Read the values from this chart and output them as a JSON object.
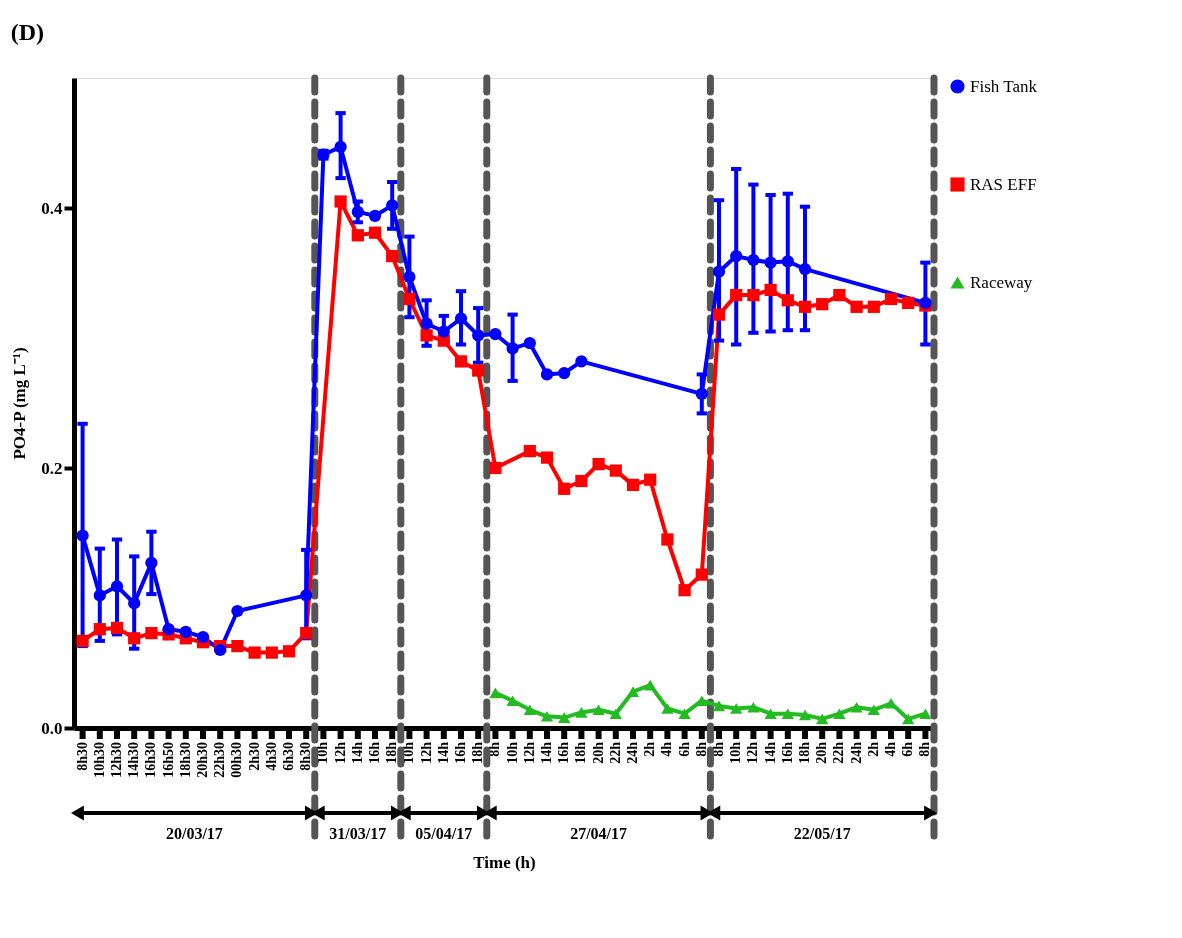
{
  "chart_data": {
    "type": "line",
    "title": "(D)",
    "xlabel": "Time (h)",
    "ylabel": "PO4-P (mg L⁻¹)",
    "categories": [
      "8h30",
      "10h30",
      "12h30",
      "14h30",
      "16h30",
      "16h50",
      "18h30",
      "20h30",
      "22h30",
      "00h30",
      "2h30",
      "4h30",
      "6h30",
      "8h30",
      "10h",
      "12h",
      "14h",
      "16h",
      "18h",
      "10h",
      "12h",
      "14h",
      "16h",
      "18h",
      "8h",
      "10h",
      "12h",
      "14h",
      "16h",
      "18h",
      "20h",
      "22h",
      "24h",
      "2h",
      "4h",
      "6h",
      "8h",
      "8h",
      "10h",
      "12h",
      "14h",
      "16h",
      "18h",
      "20h",
      "22h",
      "24h",
      "2h",
      "4h",
      "6h",
      "8h"
    ],
    "series": [
      {
        "name": "Fish Tank",
        "color": "#0000ff",
        "marker": "circle",
        "values": [
          0.148,
          0.102,
          0.109,
          0.096,
          0.127,
          0.076,
          0.074,
          0.07,
          0.06,
          0.09,
          null,
          null,
          null,
          0.102,
          0.441,
          0.447,
          0.397,
          0.394,
          0.402,
          0.347,
          0.311,
          0.305,
          0.315,
          0.302,
          0.303,
          0.292,
          0.296,
          0.272,
          0.273,
          0.282,
          null,
          null,
          null,
          null,
          null,
          null,
          0.257,
          0.351,
          0.363,
          0.36,
          0.358,
          0.359,
          0.353,
          null,
          null,
          null,
          null,
          null,
          null,
          0.327
        ],
        "errors": [
          [
            0.063,
            0.234
          ],
          [
            0.067,
            0.138
          ],
          [
            0.072,
            0.145
          ],
          [
            0.061,
            0.132
          ],
          [
            0.103,
            0.151
          ],
          null,
          null,
          null,
          null,
          null,
          null,
          null,
          null,
          [
            0.069,
            0.137
          ],
          [
            0.438,
            0.444
          ],
          [
            0.423,
            0.473
          ],
          [
            0.389,
            0.405
          ],
          null,
          [
            0.384,
            0.42
          ],
          [
            0.316,
            0.378
          ],
          [
            0.294,
            0.329
          ],
          [
            0.305,
            0.317
          ],
          [
            0.295,
            0.336
          ],
          [
            0.281,
            0.323
          ],
          null,
          [
            0.267,
            0.318
          ],
          null,
          null,
          null,
          null,
          null,
          null,
          null,
          null,
          null,
          null,
          [
            0.242,
            0.272
          ],
          [
            0.298,
            0.406
          ],
          [
            0.295,
            0.43
          ],
          [
            0.304,
            0.418
          ],
          [
            0.305,
            0.41
          ],
          [
            0.306,
            0.411
          ],
          [
            0.306,
            0.401
          ],
          null,
          null,
          null,
          null,
          null,
          null,
          [
            0.295,
            0.358
          ]
        ]
      },
      {
        "name": "RAS EFF",
        "color": "#ff0000",
        "marker": "square",
        "values": [
          0.067,
          0.076,
          0.077,
          0.069,
          0.073,
          0.072,
          0.069,
          0.066,
          0.063,
          0.063,
          0.058,
          0.058,
          0.059,
          0.073,
          null,
          0.405,
          0.379,
          0.381,
          0.363,
          0.33,
          0.302,
          0.298,
          0.282,
          0.275,
          0.2,
          null,
          0.213,
          0.208,
          0.184,
          0.19,
          0.203,
          0.198,
          0.187,
          0.191,
          0.145,
          0.106,
          0.118,
          0.318,
          0.333,
          0.333,
          0.337,
          0.329,
          0.324,
          0.326,
          0.333,
          0.324,
          0.324,
          0.33,
          0.327,
          0.325
        ]
      },
      {
        "name": "Raceway",
        "color": "#22bb22",
        "marker": "triangle",
        "values": [
          null,
          null,
          null,
          null,
          null,
          null,
          null,
          null,
          null,
          null,
          null,
          null,
          null,
          null,
          null,
          null,
          null,
          null,
          null,
          null,
          null,
          null,
          null,
          null,
          0.027,
          0.021,
          0.014,
          0.009,
          0.008,
          0.012,
          0.014,
          0.011,
          0.028,
          0.033,
          0.015,
          0.011,
          0.021,
          0.017,
          0.015,
          0.016,
          0.011,
          0.011,
          0.01,
          0.007,
          0.011,
          0.016,
          0.014,
          0.019,
          0.007,
          0.011
        ]
      }
    ],
    "ylim": [
      0,
      0.5
    ],
    "yticks": [
      {
        "value": 0,
        "label": "0.0"
      },
      0.2,
      0.4
    ],
    "annotations": [
      "20/03/17",
      "31/03/17",
      "05/04/17",
      "27/04/17",
      "22/05/17"
    ],
    "legend": "top right",
    "grid": false,
    "line_style": "solid"
  }
}
